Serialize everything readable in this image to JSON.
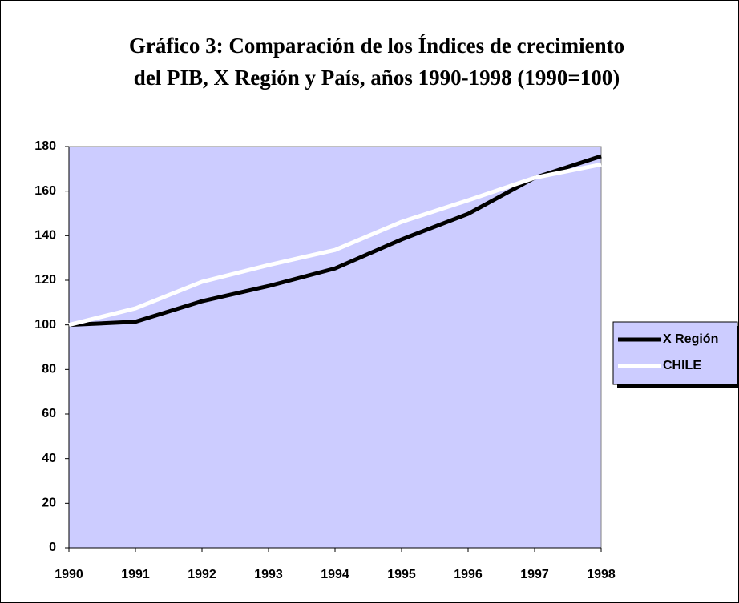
{
  "chart_data": {
    "type": "line",
    "title": [
      "Gráfico 3: Comparación de los Índices de crecimiento",
      "del PIB, X Región y País, años 1990-1998 (1990=100)"
    ],
    "categories": [
      "1990",
      "1991",
      "1992",
      "1993",
      "1994",
      "1995",
      "1996",
      "1997",
      "1998"
    ],
    "series": [
      {
        "name": "X Región",
        "color": "#000000",
        "values": [
          100,
          101.4,
          110.6,
          117.4,
          125.3,
          138.3,
          149.8,
          166,
          175.7
        ]
      },
      {
        "name": "CHILE",
        "color": "#ffffff",
        "values": [
          100,
          107.4,
          119.3,
          126.8,
          133.6,
          146.2,
          155.9,
          166,
          172
        ]
      }
    ],
    "ylim": [
      0,
      180
    ],
    "yticks": [
      0,
      20,
      40,
      60,
      80,
      100,
      120,
      140,
      160,
      180
    ],
    "plot_color": "#ccccff",
    "grid": false,
    "legend": "right"
  }
}
